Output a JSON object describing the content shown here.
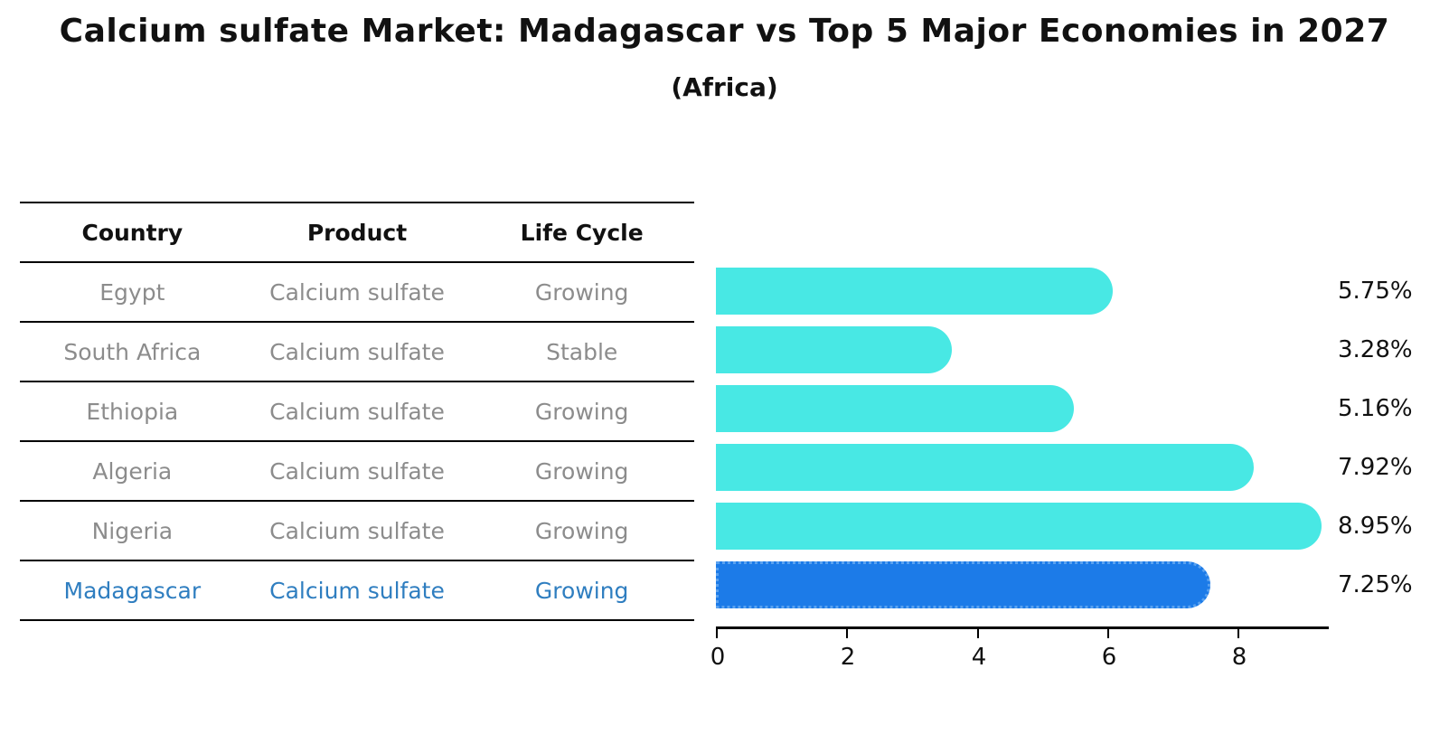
{
  "title": "Calcium sulfate Market: Madagascar vs Top 5 Major Economies in 2027",
  "subtitle": "(Africa)",
  "table": {
    "headers": {
      "country": "Country",
      "product": "Product",
      "life_cycle": "Life Cycle"
    },
    "rows": [
      {
        "country": "Egypt",
        "product": "Calcium sulfate",
        "life_cycle": "Growing"
      },
      {
        "country": "South Africa",
        "product": "Calcium sulfate",
        "life_cycle": "Stable"
      },
      {
        "country": "Ethiopia",
        "product": "Calcium sulfate",
        "life_cycle": "Growing"
      },
      {
        "country": "Algeria",
        "product": "Calcium sulfate",
        "life_cycle": "Growing"
      },
      {
        "country": "Nigeria",
        "product": "Calcium sulfate",
        "life_cycle": "Growing"
      },
      {
        "country": "Madagascar",
        "product": "Calcium sulfate",
        "life_cycle": "Growing"
      }
    ]
  },
  "chart_data": {
    "type": "bar",
    "orientation": "horizontal",
    "title": "Calcium sulfate Market: Madagascar vs Top 5 Major Economies in 2027 (Africa)",
    "categories": [
      "Egypt",
      "South Africa",
      "Ethiopia",
      "Algeria",
      "Nigeria",
      "Madagascar"
    ],
    "values": [
      5.75,
      3.28,
      5.16,
      7.92,
      8.95,
      7.25
    ],
    "value_labels": [
      "5.75%",
      "3.28%",
      "5.16%",
      "7.92%",
      "8.95%",
      "7.25%"
    ],
    "xlabel": "",
    "ylabel": "",
    "xlim": [
      0,
      9.4
    ],
    "xticks": [
      0,
      2,
      4,
      6,
      8
    ],
    "grid": false,
    "legend": false,
    "bar_color": "#48e8e4",
    "highlight_index": 5,
    "highlight_color": "#1c7be8",
    "highlight_edge_color": "#5aa2f0",
    "highlight_text_color": "#2f7ec0",
    "text_color_muted": "#8c8c8c"
  }
}
